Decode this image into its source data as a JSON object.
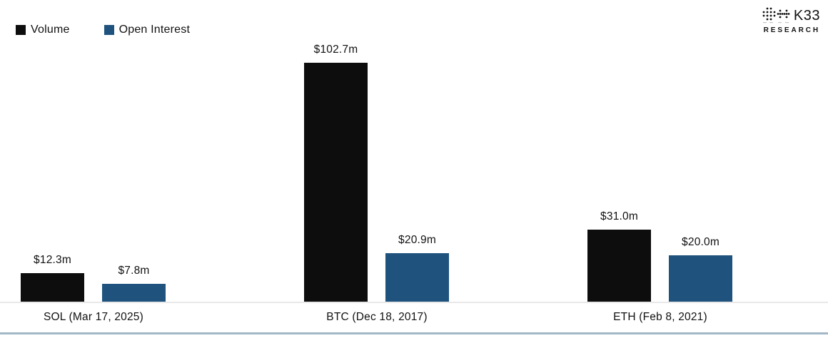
{
  "legend": {
    "items": [
      {
        "label": "Volume",
        "color": "#0d0d0d"
      },
      {
        "label": "Open Interest",
        "color": "#1f537e"
      }
    ]
  },
  "logo": {
    "name": "K33",
    "subtitle": "RESEARCH",
    "icon": "k33-dot-matrix-icon"
  },
  "colors": {
    "volume_bar": "#0d0d0d",
    "open_interest_bar": "#1f537e",
    "axis_line": "#e8e8e8",
    "bottom_rule": "#a3b8c7",
    "text": "#111111",
    "background": "#ffffff"
  },
  "chart_data": {
    "type": "bar",
    "title": "",
    "xlabel": "",
    "ylabel": "",
    "categories": [
      "SOL (Mar 17, 2025)",
      "BTC (Dec 18, 2017)",
      "ETH (Feb 8, 2021)"
    ],
    "series": [
      {
        "name": "Volume",
        "color": "#0d0d0d",
        "values": [
          12.3,
          102.7,
          31.0
        ],
        "labels": [
          "$12.3m",
          "$102.7m",
          "$31.0m"
        ]
      },
      {
        "name": "Open Interest",
        "color": "#1f537e",
        "values": [
          7.8,
          20.9,
          20.0
        ],
        "labels": [
          "$7.8m",
          "$20.9m",
          "$20.0m"
        ]
      }
    ],
    "unit": "million USD",
    "value_format": "$%.1fm",
    "ylim": [
      0,
      110
    ],
    "grid": false,
    "y_axis_visible": false,
    "legend_position": "top-left"
  }
}
